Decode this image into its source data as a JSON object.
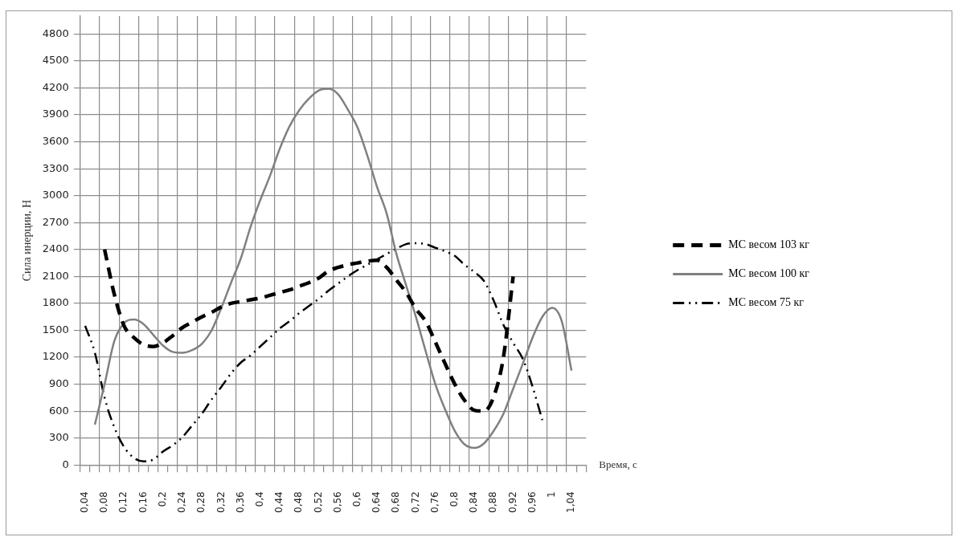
{
  "chart_data": {
    "type": "line",
    "xlabel": "Время, с",
    "ylabel": "Сила инерции, Н",
    "categories": [
      "0,04",
      null,
      "0,08",
      null,
      "0,12",
      null,
      "0,16",
      null,
      "0,2",
      null,
      "0,24",
      null,
      "0,28",
      null,
      "0,32",
      null,
      "0,36",
      null,
      "0,4",
      null,
      "0,44",
      null,
      "0,48",
      null,
      "0,52",
      null,
      "0,56",
      null,
      "0,6",
      null,
      "0,64",
      null,
      "0,68",
      null,
      "0,72",
      null,
      "0,76",
      null,
      "0,8",
      null,
      "0,84",
      null,
      "0,88",
      null,
      "0,92",
      null,
      "0,96",
      null,
      "1",
      null,
      "1,04",
      null
    ],
    "ylim": [
      0,
      5000
    ],
    "yticks": [
      0,
      300,
      600,
      900,
      1200,
      1500,
      1800,
      2100,
      2400,
      2700,
      3000,
      3300,
      3600,
      3900,
      4200,
      4500,
      4800
    ],
    "grid": true,
    "legend": "right",
    "marker": "none",
    "series": [
      {
        "name": "МС весом 103 кг",
        "color": "#000000",
        "line_style": "dashed",
        "values": [
          null,
          null,
          2400,
          1900,
          1550,
          1420,
          1340,
          1320,
          1360,
          1440,
          1530,
          1590,
          1650,
          1700,
          1760,
          1800,
          1820,
          1840,
          1860,
          1890,
          1920,
          1950,
          1990,
          2030,
          2080,
          2160,
          2200,
          2230,
          2250,
          2270,
          2280,
          2200,
          2060,
          1920,
          1740,
          1600,
          1370,
          1130,
          900,
          720,
          610,
          600,
          760,
          1200,
          2100,
          null,
          null,
          null,
          null,
          null,
          null,
          null
        ]
      },
      {
        "name": "МС весом 100 кг",
        "color": "#808080",
        "line_style": "solid",
        "values": [
          null,
          450,
          900,
          1380,
          1580,
          1620,
          1570,
          1450,
          1330,
          1260,
          1250,
          1280,
          1350,
          1500,
          1750,
          2030,
          2300,
          2650,
          2950,
          3220,
          3520,
          3770,
          3950,
          4080,
          4170,
          4190,
          4130,
          3960,
          3760,
          3450,
          3100,
          2800,
          2350,
          2000,
          1650,
          1270,
          900,
          620,
          380,
          230,
          190,
          240,
          380,
          570,
          850,
          1130,
          1420,
          1650,
          1750,
          1600,
          1050,
          null
        ]
      },
      {
        "name": "МС весом 75 кг",
        "color": "#000000",
        "line_style": "dashdot",
        "values": [
          1550,
          1250,
          750,
          420,
          200,
          80,
          40,
          60,
          150,
          220,
          310,
          440,
          570,
          730,
          870,
          1020,
          1140,
          1220,
          1320,
          1420,
          1520,
          1600,
          1690,
          1770,
          1850,
          1940,
          2020,
          2100,
          2170,
          2230,
          2290,
          2350,
          2410,
          2460,
          2470,
          2460,
          2420,
          2380,
          2330,
          2230,
          2150,
          2050,
          1830,
          1560,
          1360,
          1180,
          870,
          500,
          null,
          null,
          null,
          null
        ]
      }
    ]
  }
}
